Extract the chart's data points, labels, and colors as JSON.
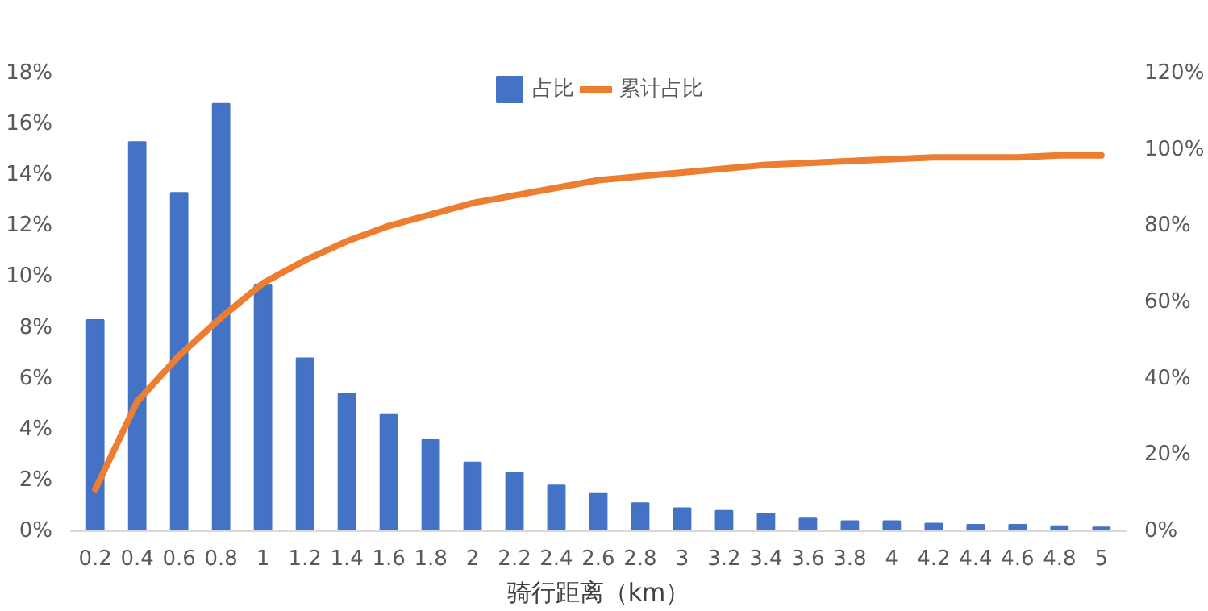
{
  "chart_data": {
    "type": "bar",
    "xlabel": "骑行距离（km）",
    "categories": [
      "0.2",
      "0.4",
      "0.6",
      "0.8",
      "1",
      "1.2",
      "1.4",
      "1.6",
      "1.8",
      "2",
      "2.2",
      "2.4",
      "2.6",
      "2.8",
      "3",
      "3.2",
      "3.4",
      "3.6",
      "3.8",
      "4",
      "4.2",
      "4.4",
      "4.6",
      "4.8",
      "5"
    ],
    "series": [
      {
        "name": "占比",
        "color": "#4472c4",
        "values": [
          8.3,
          15.3,
          13.3,
          16.8,
          9.7,
          6.8,
          5.4,
          4.6,
          3.6,
          2.7,
          2.3,
          1.8,
          1.5,
          1.1,
          0.9,
          0.8,
          0.7,
          0.5,
          0.4,
          0.4,
          0.3,
          0.25,
          0.25,
          0.2,
          0.15
        ]
      },
      {
        "name": "累计占比",
        "type": "line",
        "axis": "y2",
        "color": "#ed7d31",
        "values": [
          11,
          34,
          46,
          56,
          65,
          71,
          76,
          80,
          83,
          86,
          88,
          90,
          92,
          93,
          94,
          95,
          96,
          96.5,
          97,
          97.5,
          98,
          98,
          98,
          98.5,
          98.5
        ]
      }
    ],
    "ylim": [
      0,
      18
    ],
    "yticks": [
      {
        "value": 0,
        "label": "0%"
      },
      {
        "value": 2,
        "label": "2%"
      },
      {
        "value": 4,
        "label": "4%"
      },
      {
        "value": 6,
        "label": "6%"
      },
      {
        "value": 8,
        "label": "8%"
      },
      {
        "value": 10,
        "label": "10%"
      },
      {
        "value": 12,
        "label": "12%"
      },
      {
        "value": 14,
        "label": "14%"
      },
      {
        "value": 16,
        "label": "16%"
      },
      {
        "value": 18,
        "label": "18%"
      }
    ],
    "y2lim": [
      0,
      120
    ],
    "y2ticks": [
      {
        "value": 0,
        "label": "0%"
      },
      {
        "value": 20,
        "label": "20%"
      },
      {
        "value": 40,
        "label": "40%"
      },
      {
        "value": 60,
        "label": "60%"
      },
      {
        "value": 80,
        "label": "80%"
      },
      {
        "value": 100,
        "label": "100%"
      },
      {
        "value": 120,
        "label": "120%"
      }
    ],
    "legend": "top",
    "grid": false
  }
}
